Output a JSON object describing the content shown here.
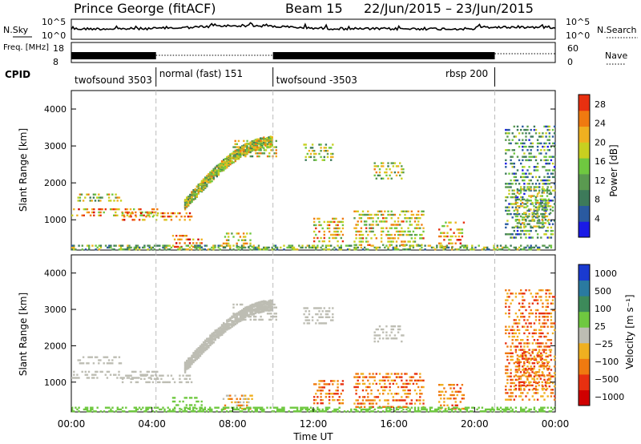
{
  "header": {
    "station": "Prince George (fitACF)",
    "beam": "Beam 15",
    "date_range": "22/Jun/2015 – 23/Jun/2015"
  },
  "noise_panel": {
    "left_label": "N.Sky",
    "right_label": "N.Search",
    "left_ticks": [
      "10^5",
      "10^0"
    ],
    "right_ticks": [
      "10^5",
      "10^0"
    ]
  },
  "freq_panel": {
    "left_label": "Freq. [MHz]",
    "right_label": "Nave",
    "left_ticks": [
      "18",
      "8"
    ],
    "right_ticks": [
      "60",
      "0"
    ]
  },
  "cpid_panel": {
    "label": "CPID",
    "segments": [
      {
        "name": "twofsound 3503",
        "start_hour": 0.0,
        "end_hour": 4.2
      },
      {
        "name": "normal (fast) 151",
        "start_hour": 4.2,
        "end_hour": 10.0
      },
      {
        "name": "twofsound -3503",
        "start_hour": 10.0,
        "end_hour": 21.0
      },
      {
        "name": "rbsp 200",
        "start_hour": 21.0,
        "end_hour": 24.0
      }
    ]
  },
  "chart_data": [
    {
      "type": "heatmap",
      "quantity": "power",
      "ylabel": "Slant Range [km]",
      "ylim": [
        180,
        4500
      ],
      "y_ticks": [
        1000,
        2000,
        3000,
        4000
      ],
      "colorbar": {
        "label": "Power [dB]",
        "ticks": [
          4,
          8,
          12,
          16,
          20,
          24,
          28
        ],
        "range": [
          0,
          30
        ],
        "colors": [
          "#1a1ae6",
          "#2a5aa0",
          "#3d7a5a",
          "#5a9a50",
          "#6fc840",
          "#c8d020",
          "#f0b020",
          "#f07a10",
          "#e83010",
          "#d00000"
        ]
      }
    },
    {
      "type": "heatmap",
      "quantity": "velocity",
      "ylabel": "Slant Range [km]",
      "ylim": [
        180,
        4500
      ],
      "y_ticks": [
        1000,
        2000,
        3000,
        4000
      ],
      "colorbar": {
        "label": "Velocity [m s⁻¹]",
        "ticks": [
          "1000",
          "500",
          "100",
          "25",
          "−25",
          "−100",
          "−500",
          "−1000"
        ],
        "colors": [
          "#1a3ad0",
          "#2a7aa0",
          "#3d8a5a",
          "#6fc840",
          "#bdbdb3",
          "#f0b020",
          "#f07a10",
          "#e83010",
          "#d00000"
        ]
      }
    }
  ],
  "x_axis": {
    "label": "Time UT",
    "ticks": [
      "00:00",
      "04:00",
      "08:00",
      "12:00",
      "16:00",
      "20:00",
      "00:00"
    ],
    "range_hours": [
      0,
      24
    ]
  }
}
